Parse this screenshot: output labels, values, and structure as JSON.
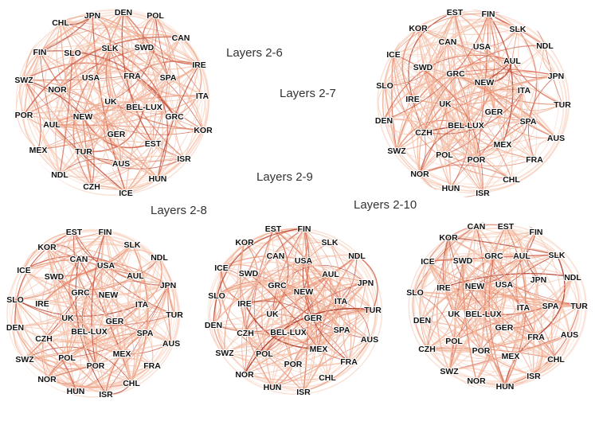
{
  "edge_colors": [
    "#f6c6b0",
    "#efa98c",
    "#e4876a",
    "#d0604a",
    "#b3402f",
    "#f9dccd"
  ],
  "networks": [
    {
      "id": "layers-2-6",
      "label": "Layers 2-6",
      "nodes": [
        "CHL",
        "JPN",
        "DEN",
        "POL",
        "CAN",
        "FIN",
        "SLO",
        "SLK",
        "SWD",
        "IRE",
        "SWZ",
        "USA",
        "FRA",
        "SPA",
        "NOR",
        "ITA",
        "UK",
        "BEL-LUX",
        "GRC",
        "POR",
        "NEW",
        "KOR",
        "AUL",
        "GER",
        "MEX",
        "TUR",
        "EST",
        "ISR",
        "NDL",
        "AUS",
        "HUN",
        "CZH",
        "ICE"
      ]
    },
    {
      "id": "layers-2-7",
      "label": "Layers 2-7",
      "nodes": [
        "EST",
        "FIN",
        "KOR",
        "CAN",
        "SLK",
        "ICE",
        "SWD",
        "USA",
        "NDL",
        "AUL",
        "GRC",
        "JPN",
        "SLO",
        "NEW",
        "ITA",
        "IRE",
        "UK",
        "TUR",
        "GER",
        "DEN",
        "BEL-LUX",
        "SPA",
        "CZH",
        "AUS",
        "MEX",
        "SWZ",
        "POL",
        "POR",
        "FRA",
        "NOR",
        "CHL",
        "HUN",
        "ISR"
      ]
    },
    {
      "id": "layers-2-8",
      "label": "Layers 2-8",
      "nodes": [
        "EST",
        "FIN",
        "KOR",
        "SLK",
        "NDL",
        "CAN",
        "USA",
        "ICE",
        "SWD",
        "AUL",
        "GRC",
        "JPN",
        "NEW",
        "SLO",
        "IRE",
        "ITA",
        "TUR",
        "UK",
        "GER",
        "DEN",
        "BEL-LUX",
        "SPA",
        "CZH",
        "AUS",
        "MEX",
        "SWZ",
        "POL",
        "POR",
        "FRA",
        "NOR",
        "CHL",
        "HUN",
        "ISR"
      ]
    },
    {
      "id": "layers-2-9",
      "label": "Layers 2-9",
      "nodes": [
        "EST",
        "FIN",
        "KOR",
        "SLK",
        "NDL",
        "CAN",
        "USA",
        "ICE",
        "SWD",
        "AUL",
        "GRC",
        "JPN",
        "NEW",
        "SLO",
        "IRE",
        "ITA",
        "TUR",
        "UK",
        "GER",
        "DEN",
        "BEL-LUX",
        "SPA",
        "CZH",
        "AUS",
        "MEX",
        "SWZ",
        "POL",
        "POR",
        "FRA",
        "NOR",
        "CHL",
        "HUN",
        "ISR"
      ]
    },
    {
      "id": "layers-2-10",
      "label": "Layers 2-10",
      "nodes": [
        "CAN",
        "EST",
        "KOR",
        "FIN",
        "ICE",
        "SWD",
        "GRC",
        "AUL",
        "SLK",
        "NDL",
        "IRE",
        "NEW",
        "USA",
        "JPN",
        "SLO",
        "UK",
        "BEL-LUX",
        "ITA",
        "SPA",
        "TUR",
        "DEN",
        "GER",
        "FRA",
        "AUS",
        "CZH",
        "POL",
        "POR",
        "MEX",
        "CHL",
        "SWZ",
        "NOR",
        "HUN",
        "ISR"
      ]
    }
  ]
}
